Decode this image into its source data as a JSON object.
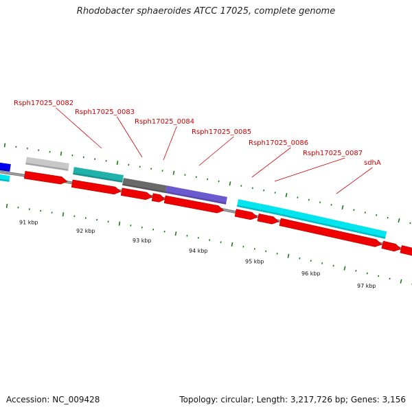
{
  "title": "Rhodobacter sphaeroides ATCC 17025, complete genome",
  "footer": {
    "accession": "Accession: NC_009428",
    "summary": "Topology: circular; Length: 3,217,726 bp; Genes: 3,156"
  },
  "colors": {
    "backbone": "#7f7f7f",
    "tick": "#1a7a1a",
    "cds_red": "#ee0000",
    "cyan": "#00e5ee",
    "teal": "#20b2aa",
    "lightgray": "#c8c8c8",
    "darkgray": "#696969",
    "slateblue": "#6a5acd",
    "blue": "#0000ee",
    "label": "#cc0000"
  },
  "gene_labels": [
    "Rsph17025_0082",
    "Rsph17025_0083",
    "Rsph17025_0084",
    "Rsph17025_0085",
    "Rsph17025_0086",
    "Rsph17025_0087",
    "sdhA"
  ],
  "kbp_labels": [
    "91 kbp",
    "92 kbp",
    "93 kbp",
    "94 kbp",
    "95 kbp",
    "96 kbp",
    "97 kbp"
  ]
}
